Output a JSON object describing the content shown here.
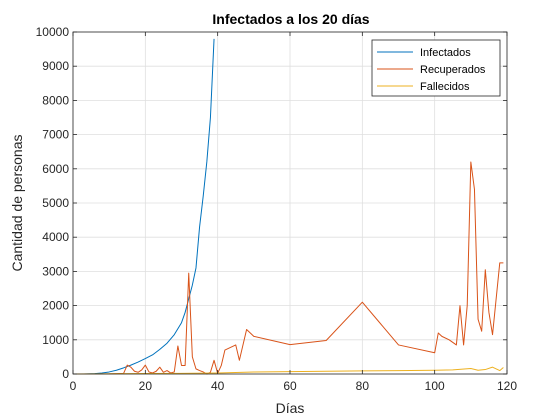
{
  "chart_data": {
    "type": "line",
    "title": "Infectados a los 20 días",
    "xlabel": "Días",
    "ylabel": "Cantidad de personas",
    "xlim": [
      0,
      120
    ],
    "ylim": [
      0,
      10000
    ],
    "xticks": [
      0,
      20,
      40,
      60,
      80,
      100,
      120
    ],
    "yticks": [
      0,
      1000,
      2000,
      3000,
      4000,
      5000,
      6000,
      7000,
      8000,
      9000,
      10000
    ],
    "grid": true,
    "legend_position": "top-right",
    "series": [
      {
        "name": "Infectados",
        "color": "#0072BD",
        "points": [
          [
            0,
            0
          ],
          [
            3,
            0
          ],
          [
            6,
            10
          ],
          [
            8,
            30
          ],
          [
            10,
            60
          ],
          [
            12,
            110
          ],
          [
            14,
            180
          ],
          [
            16,
            260
          ],
          [
            18,
            350
          ],
          [
            20,
            450
          ],
          [
            22,
            560
          ],
          [
            24,
            720
          ],
          [
            26,
            900
          ],
          [
            28,
            1150
          ],
          [
            30,
            1500
          ],
          [
            31,
            1800
          ],
          [
            32,
            2200
          ],
          [
            33,
            2600
          ],
          [
            34,
            3100
          ],
          [
            35,
            4300
          ],
          [
            36,
            5200
          ],
          [
            37,
            6200
          ],
          [
            38,
            7500
          ],
          [
            39,
            9800
          ]
        ]
      },
      {
        "name": "Recuperados",
        "color": "#D95319",
        "points": [
          [
            0,
            0
          ],
          [
            10,
            5
          ],
          [
            14,
            20
          ],
          [
            15,
            260
          ],
          [
            16,
            200
          ],
          [
            17,
            80
          ],
          [
            18,
            50
          ],
          [
            19,
            120
          ],
          [
            20,
            260
          ],
          [
            21,
            60
          ],
          [
            22,
            30
          ],
          [
            23,
            80
          ],
          [
            24,
            200
          ],
          [
            25,
            50
          ],
          [
            26,
            100
          ],
          [
            27,
            30
          ],
          [
            28,
            60
          ],
          [
            29,
            820
          ],
          [
            30,
            250
          ],
          [
            31,
            250
          ],
          [
            32,
            2950
          ],
          [
            33,
            500
          ],
          [
            34,
            150
          ],
          [
            35,
            100
          ],
          [
            36,
            60
          ],
          [
            37,
            0
          ],
          [
            38,
            50
          ],
          [
            39,
            400
          ],
          [
            40,
            20
          ],
          [
            41,
            250
          ],
          [
            42,
            700
          ],
          [
            45,
            850
          ],
          [
            46,
            400
          ],
          [
            48,
            1300
          ],
          [
            50,
            1100
          ],
          [
            60,
            860
          ],
          [
            70,
            980
          ],
          [
            80,
            2100
          ],
          [
            90,
            850
          ],
          [
            100,
            620
          ],
          [
            101,
            1200
          ],
          [
            102,
            1100
          ],
          [
            104,
            1000
          ],
          [
            106,
            850
          ],
          [
            107,
            2000
          ],
          [
            108,
            850
          ],
          [
            109,
            2000
          ],
          [
            110,
            6200
          ],
          [
            111,
            5400
          ],
          [
            112,
            1600
          ],
          [
            113,
            1250
          ],
          [
            114,
            3050
          ],
          [
            115,
            1800
          ],
          [
            116,
            1150
          ],
          [
            118,
            3250
          ],
          [
            119,
            3250
          ]
        ]
      },
      {
        "name": "Fallecidos",
        "color": "#EDB120",
        "points": [
          [
            0,
            0
          ],
          [
            15,
            10
          ],
          [
            20,
            15
          ],
          [
            30,
            20
          ],
          [
            40,
            30
          ],
          [
            50,
            60
          ],
          [
            60,
            70
          ],
          [
            70,
            80
          ],
          [
            80,
            90
          ],
          [
            90,
            100
          ],
          [
            100,
            110
          ],
          [
            105,
            120
          ],
          [
            110,
            160
          ],
          [
            112,
            110
          ],
          [
            114,
            130
          ],
          [
            116,
            200
          ],
          [
            118,
            100
          ],
          [
            119,
            190
          ]
        ]
      }
    ]
  }
}
